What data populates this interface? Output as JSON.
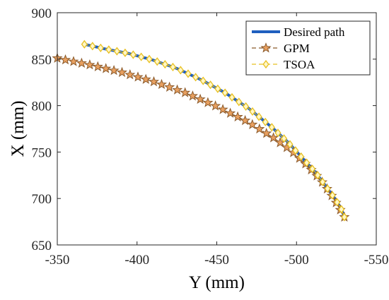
{
  "chart_data": {
    "type": "line",
    "title": "",
    "xlabel": "Y (mm)",
    "ylabel": "X (mm)",
    "xlim": [
      -350,
      -550
    ],
    "ylim": [
      650,
      900
    ],
    "x_reversed": true,
    "xticks": [
      -350,
      -400,
      -450,
      -500,
      -550
    ],
    "yticks": [
      650,
      700,
      750,
      800,
      850,
      900
    ],
    "grid": false,
    "legend_position": "top-right",
    "series": [
      {
        "name": "Desired path",
        "color": "#1f5fbf",
        "marker": "none",
        "x": [
          -367,
          -380,
          -395,
          -410,
          -425,
          -440,
          -455,
          -470,
          -485,
          -495,
          -505,
          -512,
          -518,
          -524,
          -528,
          -530
        ],
        "y": [
          866,
          861,
          856,
          849,
          840,
          828,
          814,
          797,
          776,
          760,
          741,
          728,
          714,
          700,
          689,
          680
        ]
      },
      {
        "name": "GPM",
        "color": "#8b5a2b",
        "marker": "star",
        "x": [
          -350,
          -370,
          -390,
          -410,
          -430,
          -450,
          -470,
          -485,
          -497,
          -507,
          -515,
          -521,
          -526,
          -530
        ],
        "y": [
          851,
          844,
          836,
          826,
          814,
          799,
          782,
          766,
          751,
          735,
          720,
          706,
          692,
          680
        ]
      },
      {
        "name": "TSOA",
        "color": "#e8c020",
        "marker": "diamond",
        "x": [
          -367,
          -380,
          -395,
          -410,
          -425,
          -440,
          -455,
          -470,
          -485,
          -495,
          -505,
          -512,
          -518,
          -524,
          -528,
          -530
        ],
        "y": [
          866,
          861,
          856,
          849,
          840,
          828,
          814,
          797,
          776,
          760,
          741,
          728,
          714,
          700,
          689,
          680
        ]
      }
    ]
  }
}
